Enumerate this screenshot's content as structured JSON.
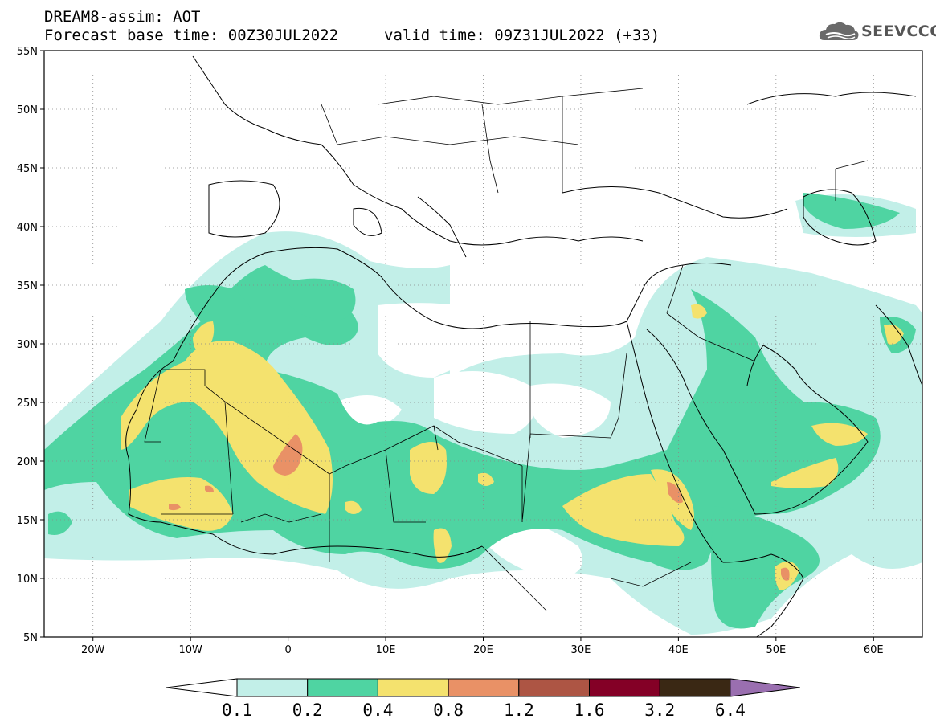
{
  "header": {
    "title_line1": "DREAM8-assim: AOT",
    "title_line2": "Forecast base time: 00Z30JUL2022",
    "valid_time": "valid time: 09Z31JUL2022 (+33)",
    "logo_text": "SEEVCCC"
  },
  "map": {
    "lon_range": [
      -25,
      65
    ],
    "lat_range": [
      5,
      55
    ],
    "lat_labels": [
      "5N",
      "10N",
      "15N",
      "20N",
      "25N",
      "30N",
      "35N",
      "40N",
      "45N",
      "50N",
      "55N"
    ],
    "lon_labels": [
      "20W",
      "10W",
      "0",
      "10E",
      "20E",
      "30E",
      "40E",
      "50E",
      "60E"
    ],
    "grid": "dotted"
  },
  "colorbar": {
    "labels": [
      "0.1",
      "0.2",
      "0.4",
      "0.8",
      "1.2",
      "1.6",
      "3.2",
      "6.4"
    ],
    "colors": [
      "#ffffff",
      "#c2efe8",
      "#4fd4a2",
      "#f4e26e",
      "#e99166",
      "#ad5544",
      "#840026",
      "#3a2814",
      "#9a6fb0"
    ]
  },
  "colors": {
    "aot_0.1": "#c2efe8",
    "aot_0.2": "#4fd4a2",
    "aot_0.4": "#f4e26e",
    "aot_0.8": "#e99166"
  }
}
